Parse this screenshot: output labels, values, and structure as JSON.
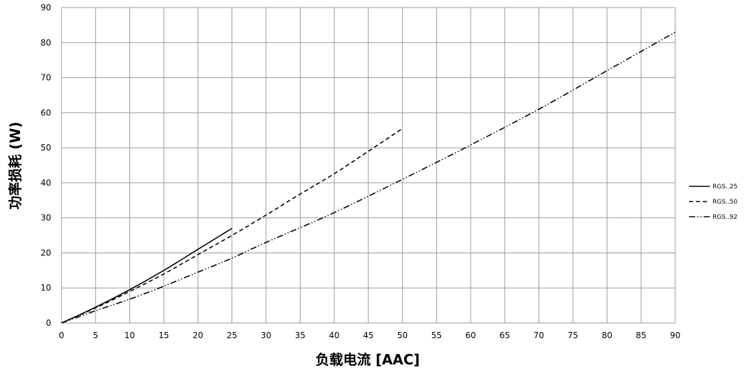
{
  "chart_data": {
    "type": "line",
    "title": "",
    "xlabel": "负载电流 [AAC]",
    "ylabel": "功率损耗 (W)",
    "xlim": [
      0,
      90
    ],
    "ylim": [
      0,
      90
    ],
    "xticks": [
      0,
      5,
      10,
      15,
      20,
      25,
      30,
      35,
      40,
      45,
      50,
      55,
      60,
      65,
      70,
      75,
      80,
      85,
      90
    ],
    "yticks": [
      0,
      10,
      20,
      30,
      40,
      50,
      60,
      70,
      80,
      90
    ],
    "grid": true,
    "legend_position": "right",
    "series": [
      {
        "name": "RGS..25",
        "dash": "solid",
        "x": [
          0,
          5,
          10,
          15,
          20,
          25
        ],
        "y": [
          0,
          4.5,
          9.5,
          15,
          21,
          27
        ]
      },
      {
        "name": "RGS..50",
        "dash": "dashed",
        "x": [
          0,
          5,
          10,
          15,
          20,
          25,
          30,
          35,
          40,
          45,
          50
        ],
        "y": [
          0,
          4.3,
          9,
          14,
          19.5,
          25,
          30.8,
          36.8,
          42.6,
          49,
          55.5
        ]
      },
      {
        "name": "RGS..92",
        "dash": "dashdotdot",
        "x": [
          0,
          5,
          10,
          15,
          20,
          25,
          30,
          40,
          50,
          60,
          70,
          80,
          90
        ],
        "y": [
          0,
          3.5,
          6.8,
          10.5,
          14.5,
          18.5,
          23,
          31.5,
          41,
          50.8,
          61,
          72,
          83
        ]
      }
    ]
  }
}
